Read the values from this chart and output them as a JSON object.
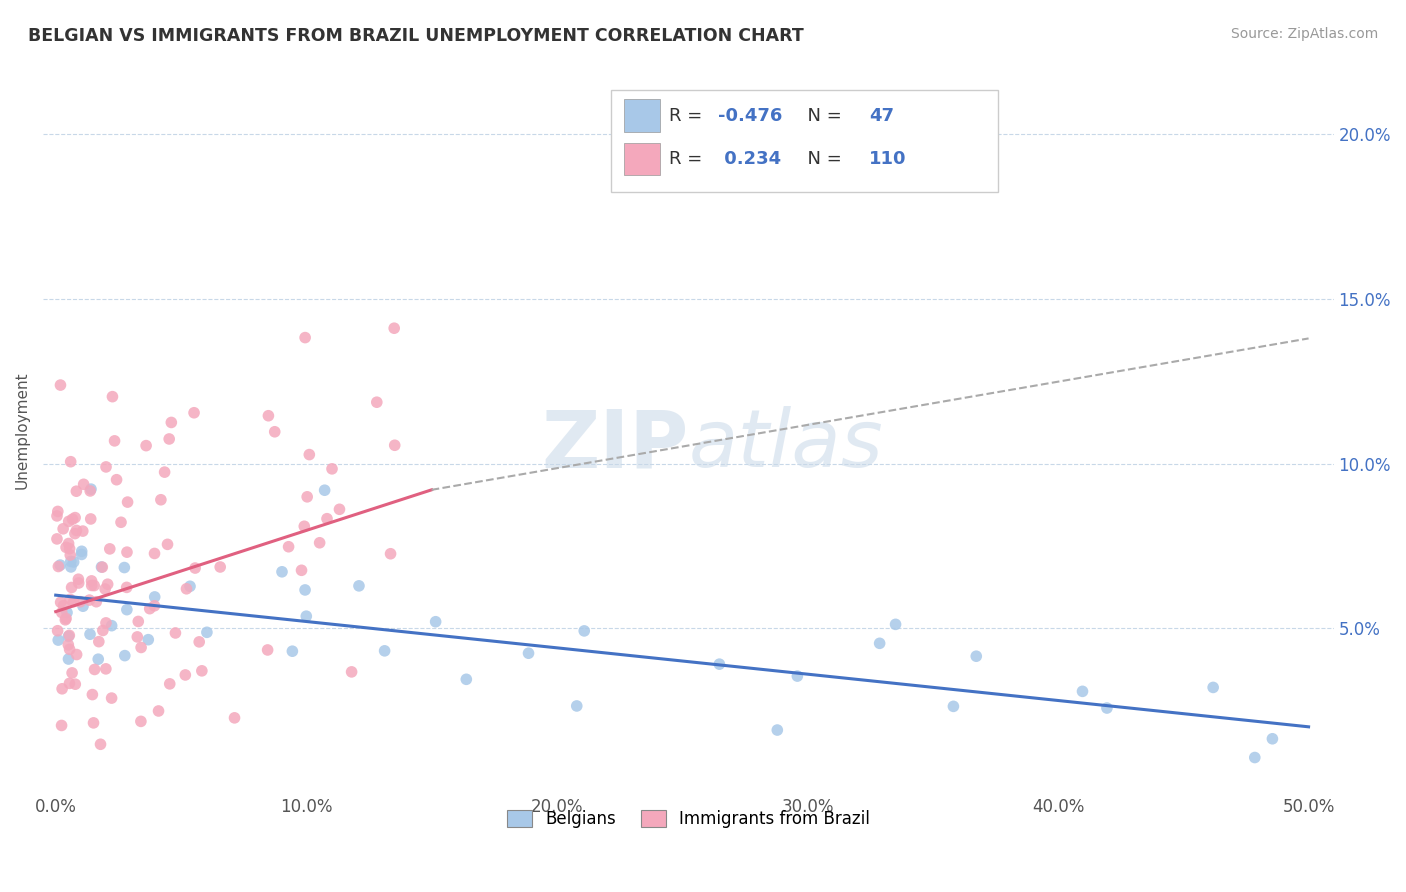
{
  "title": "BELGIAN VS IMMIGRANTS FROM BRAZIL UNEMPLOYMENT CORRELATION CHART",
  "source": "Source: ZipAtlas.com",
  "ylabel": "Unemployment",
  "x_tick_labels": [
    "0.0%",
    "10.0%",
    "20.0%",
    "30.0%",
    "40.0%",
    "50.0%"
  ],
  "x_tick_vals": [
    0.0,
    10.0,
    20.0,
    30.0,
    40.0,
    50.0
  ],
  "y_tick_labels_right": [
    "5.0%",
    "10.0%",
    "15.0%",
    "20.0%"
  ],
  "y_tick_vals": [
    5.0,
    10.0,
    15.0,
    20.0
  ],
  "xlim": [
    -0.5,
    51.0
  ],
  "ylim": [
    0.0,
    22.0
  ],
  "belgians_R": -0.476,
  "belgians_N": 47,
  "brazil_R": 0.234,
  "brazil_N": 110,
  "blue_color": "#a8c8e8",
  "pink_color": "#f4a8bc",
  "blue_line_color": "#4472c4",
  "pink_line_color": "#e06080",
  "grid_color": "#c8d8e8",
  "watermark_color": "#c8d8e8",
  "legend_labels": [
    "Belgians",
    "Immigrants from Brazil"
  ],
  "bel_trend_x0": 0.0,
  "bel_trend_y0": 6.0,
  "bel_trend_x1": 50.0,
  "bel_trend_y1": 2.0,
  "bra_trend_x0": 0.0,
  "bra_trend_y0": 5.5,
  "bra_trend_x1": 15.0,
  "bra_trend_y1": 9.2,
  "bra_dash_x0": 15.0,
  "bra_dash_y0": 9.2,
  "bra_dash_x1": 50.0,
  "bra_dash_y1": 13.8
}
